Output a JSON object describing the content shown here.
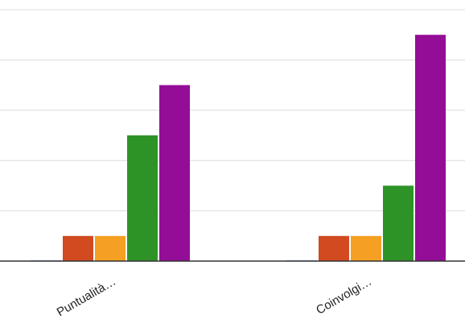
{
  "chart_data": {
    "type": "bar",
    "categories": [
      "Puntualità…",
      "Coinvolgi…"
    ],
    "series": [
      {
        "color": "#3366cc",
        "values": [
          0,
          0
        ]
      },
      {
        "color": "#d24a20",
        "values": [
          2,
          2
        ]
      },
      {
        "color": "#f5a023",
        "values": [
          2,
          2
        ]
      },
      {
        "color": "#2e9326",
        "values": [
          10,
          6
        ]
      },
      {
        "color": "#930d96",
        "values": [
          14,
          18
        ]
      }
    ],
    "ylim": [
      0,
      20
    ],
    "grid": true,
    "legend": "none"
  }
}
